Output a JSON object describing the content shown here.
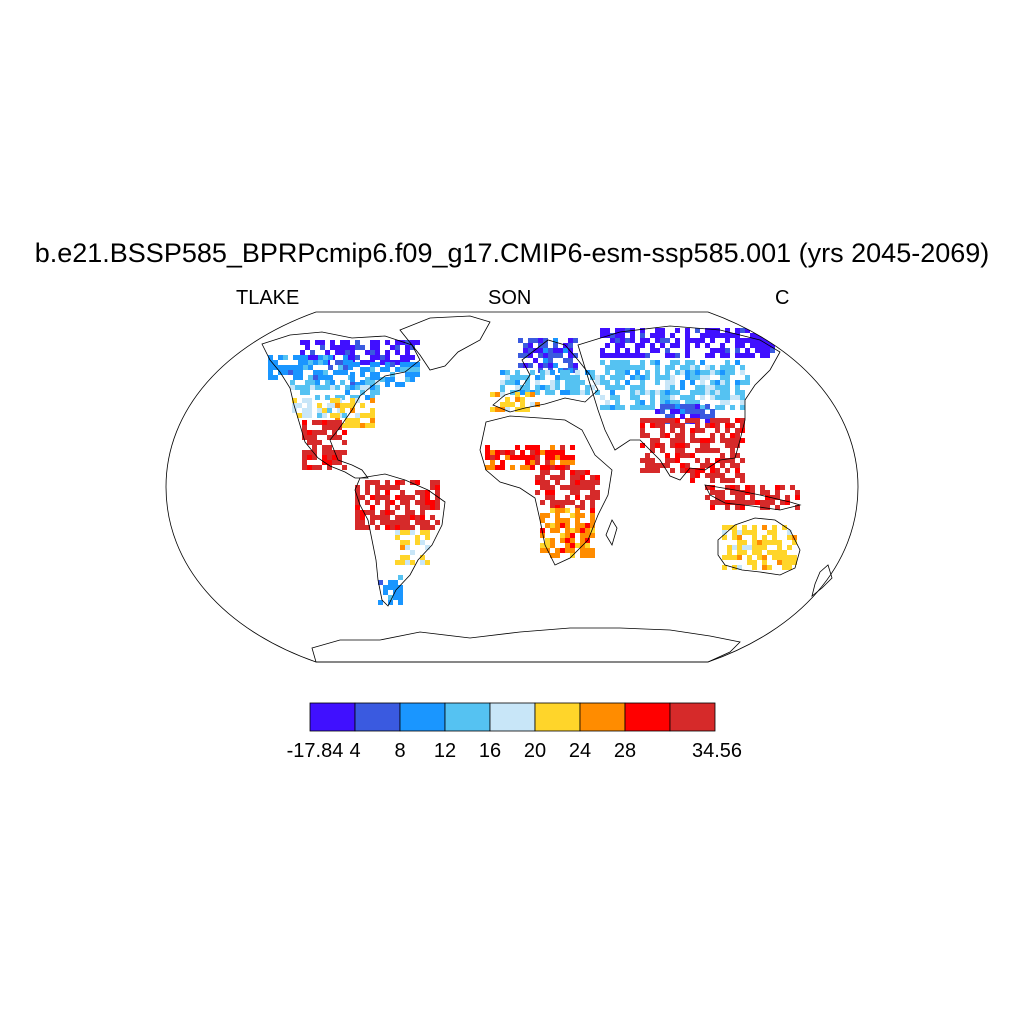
{
  "title": "b.e21.BSSP585_BPRPcmip6.f09_g17.CMIP6-esm-ssp585.001 (yrs 2045-2069)",
  "left_label": "TLAKE",
  "center_label": "SON",
  "right_label": "C",
  "colorbar": {
    "colors": [
      "#4010ff",
      "#3a5ae0",
      "#1a96ff",
      "#55c2f2",
      "#c8e6f8",
      "#ffd52a",
      "#ff8c00",
      "#ff0000",
      "#d62a2a"
    ],
    "tick_labels": [
      "-17.84",
      "4",
      "8",
      "12",
      "16",
      "20",
      "24",
      "28",
      "34.56"
    ]
  },
  "map_regions": [
    {
      "region": "arctic-north-america",
      "value_class": 0
    },
    {
      "region": "canada",
      "value_class": 2
    },
    {
      "region": "northern-usa",
      "value_class": 3
    },
    {
      "region": "central-usa",
      "value_class": 4
    },
    {
      "region": "southeast-usa",
      "value_class": 5
    },
    {
      "region": "mexico-central-america",
      "value_class": 8
    },
    {
      "region": "amazon",
      "value_class": 8
    },
    {
      "region": "southern-brazil",
      "value_class": 5
    },
    {
      "region": "patagonia",
      "value_class": 2
    },
    {
      "region": "scandinavia",
      "value_class": 1
    },
    {
      "region": "europe",
      "value_class": 3
    },
    {
      "region": "mediterranean",
      "value_class": 5
    },
    {
      "region": "siberia",
      "value_class": 0
    },
    {
      "region": "central-asia",
      "value_class": 3
    },
    {
      "region": "tibet",
      "value_class": 1
    },
    {
      "region": "sahel",
      "value_class": 7
    },
    {
      "region": "east-africa",
      "value_class": 8
    },
    {
      "region": "southern-africa",
      "value_class": 6
    },
    {
      "region": "india",
      "value_class": 8
    },
    {
      "region": "southeast-asia",
      "value_class": 8
    },
    {
      "region": "indonesia",
      "value_class": 8
    },
    {
      "region": "australia",
      "value_class": 5
    }
  ]
}
